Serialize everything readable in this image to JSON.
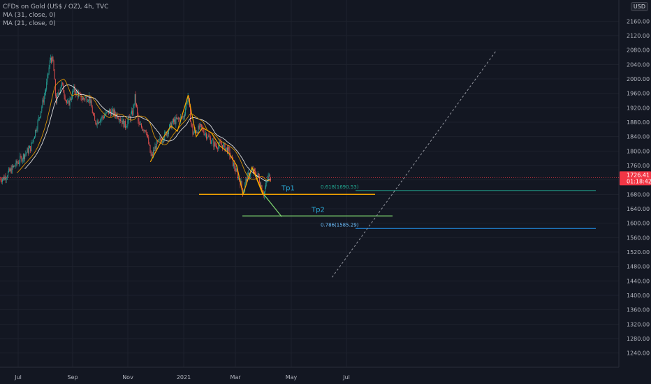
{
  "legend": {
    "title": "CFDs on Gold (US$ / OZ), 4h, TVC",
    "ma1": "MA (31, close, 0)",
    "ma2": "MA (21, close, 0)"
  },
  "currency": "USD",
  "colors": {
    "background": "#131722",
    "axis_text": "#b2b5be",
    "candle_up": "#26a69a",
    "candle_down": "#ef5350",
    "ma31": "#ffffff",
    "ma21": "#f7a600",
    "pattern": "#f7a600",
    "tp1_line": "#f7a600",
    "tp2_line": "#7ed56f",
    "fib_0618": "#22ab94",
    "fib_0786": "#2196f3",
    "current_price": "#f23645",
    "trend_dashed": "#9598a1"
  },
  "current_price": {
    "value": "1726.41",
    "countdown": "01:18:42"
  },
  "chart_data": {
    "type": "line",
    "title": "CFDs on Gold (US$ / OZ), 4h, TVC",
    "xlabel": "",
    "ylabel": "",
    "ylim": [
      1210,
      2200
    ],
    "x_ticks": [
      "Jul",
      "Sep",
      "Nov",
      "2021",
      "Mar",
      "May",
      "Jul"
    ],
    "y_ticks": [
      "2160.00",
      "2120.00",
      "2080.00",
      "2040.00",
      "2000.00",
      "1960.00",
      "1920.00",
      "1880.00",
      "1840.00",
      "1800.00",
      "1760.00",
      "1720.00",
      "1680.00",
      "1640.00",
      "1600.00",
      "1560.00",
      "1520.00",
      "1480.00",
      "1440.00",
      "1400.00",
      "1360.00",
      "1320.00",
      "1280.00",
      "1240.00"
    ],
    "series": [
      {
        "x": [
          "2020-06-01",
          "2020-06-15",
          "2020-07-01",
          "2020-07-15",
          "2020-07-25",
          "2020-08-01",
          "2020-08-06",
          "2020-08-09",
          "2020-08-12",
          "2020-08-18",
          "2020-08-25",
          "2020-09-01",
          "2020-09-10",
          "2020-09-18",
          "2020-09-24",
          "2020-10-01",
          "2020-10-10",
          "2020-10-20",
          "2020-10-28",
          "2020-11-05",
          "2020-11-08",
          "2020-11-12",
          "2020-11-20",
          "2020-11-26",
          "2020-12-01",
          "2020-12-10",
          "2020-12-20",
          "2021-01-01",
          "2021-01-06",
          "2021-01-08",
          "2021-01-11",
          "2021-01-20",
          "2021-01-28",
          "2021-02-05",
          "2021-02-12",
          "2021-02-20",
          "2021-02-28",
          "2021-03-05",
          "2021-03-08",
          "2021-03-12",
          "2021-03-18",
          "2021-03-25",
          "2021-03-31",
          "2021-04-05",
          "2021-04-08"
        ],
        "values": [
          1720,
          1725,
          1770,
          1810,
          1900,
          1975,
          2060,
          2045,
          1935,
          1990,
          1925,
          1970,
          1945,
          1950,
          1880,
          1890,
          1910,
          1900,
          1870,
          1905,
          1950,
          1870,
          1860,
          1780,
          1815,
          1840,
          1880,
          1895,
          1955,
          1900,
          1850,
          1865,
          1840,
          1815,
          1818,
          1800,
          1745,
          1715,
          1685,
          1725,
          1745,
          1730,
          1680,
          1730,
          1726
        ]
      }
    ],
    "annotations": {
      "tp1_label": "Tp1",
      "tp1_value": 1680,
      "tp2_label": "Tp2",
      "tp2_value": 1620,
      "fib_0618_label": "0.618(1690.53)",
      "fib_0618_value": 1690.53,
      "fib_0786_label": "0.786(1585.29)",
      "fib_0786_value": 1585.29,
      "current_price": 1726.41,
      "trendline": {
        "from": [
          "2021-06-15",
          1450
        ],
        "to": [
          "2021-12-15",
          2080
        ]
      },
      "pattern": [
        [
          "2020-11-25",
          1770
        ],
        [
          "2020-12-10",
          1840
        ],
        [
          "2020-12-18",
          1870
        ],
        [
          "2020-12-25",
          1855
        ],
        [
          "2021-01-06",
          1955
        ],
        [
          "2021-01-15",
          1840
        ],
        [
          "2021-01-22",
          1865
        ],
        [
          "2021-02-01",
          1850
        ],
        [
          "2021-02-10",
          1815
        ],
        [
          "2021-02-20",
          1795
        ],
        [
          "2021-03-01",
          1760
        ],
        [
          "2021-03-08",
          1680
        ],
        [
          "2021-03-18",
          1755
        ],
        [
          "2021-03-30",
          1680
        ]
      ],
      "projection_tp1": [
        [
          "2021-03-18",
          1755
        ],
        [
          "2021-03-31",
          1680
        ]
      ],
      "projection_tp2": [
        [
          "2021-03-31",
          1680
        ],
        [
          "2021-04-20",
          1618
        ]
      ]
    }
  }
}
